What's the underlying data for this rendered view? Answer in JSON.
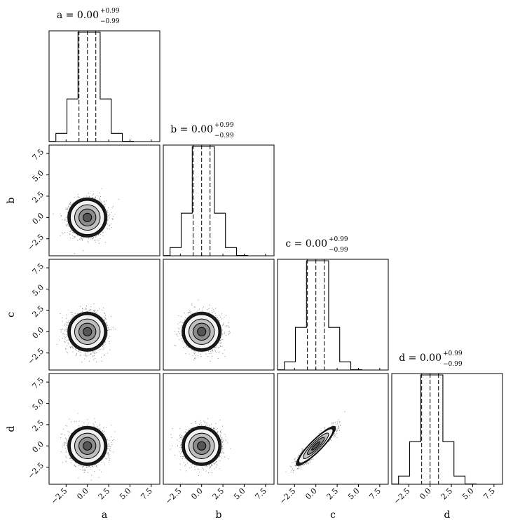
{
  "chart_data": {
    "type": "corner",
    "parameters": [
      "a",
      "b",
      "c",
      "d"
    ],
    "titles": [
      {
        "param": "a",
        "text": "a = 0.00",
        "plus": "+0.99",
        "minus": "−0.99"
      },
      {
        "param": "b",
        "text": "b = 0.00",
        "plus": "+0.99",
        "minus": "−0.99"
      },
      {
        "param": "c",
        "text": "c = 0.00",
        "plus": "+0.99",
        "minus": "−0.99"
      },
      {
        "param": "d",
        "text": "d = 0.00",
        "plus": "+0.99",
        "minus": "−0.99"
      }
    ],
    "axis_range": [
      -4.5,
      8.5
    ],
    "ticks": [
      -2.5,
      0.0,
      2.5,
      5.0,
      7.5
    ],
    "tick_labels": [
      "−2.5",
      "0.0",
      "2.5",
      "5.0",
      "7.5"
    ],
    "quantiles": [
      -0.99,
      0.0,
      0.99
    ],
    "histogram": {
      "bin_edges": [
        -5,
        -3.7,
        -2.4,
        -1.1,
        0.2,
        1.5,
        2.8,
        4.1,
        5.4
      ],
      "relative_counts": [
        0.002,
        0.075,
        0.39,
        1.0,
        1.0,
        0.39,
        0.075,
        0.003
      ]
    },
    "correlations": [
      {
        "pair": [
          "a",
          "b"
        ],
        "rho": 0.0
      },
      {
        "pair": [
          "a",
          "c"
        ],
        "rho": 0.0
      },
      {
        "pair": [
          "a",
          "d"
        ],
        "rho": 0.0
      },
      {
        "pair": [
          "b",
          "c"
        ],
        "rho": 0.0
      },
      {
        "pair": [
          "b",
          "d"
        ],
        "rho": 0.0
      },
      {
        "pair": [
          "c",
          "d"
        ],
        "rho": 0.9
      }
    ],
    "contour_levels_sigma": [
      0.5,
      1.0,
      1.5,
      2.0
    ],
    "colors": {
      "ink": "#000000",
      "level_fills": [
        "#000000",
        "#555555",
        "#8c8c8c",
        "#bfbfbf",
        "#f2f2f2"
      ]
    }
  }
}
